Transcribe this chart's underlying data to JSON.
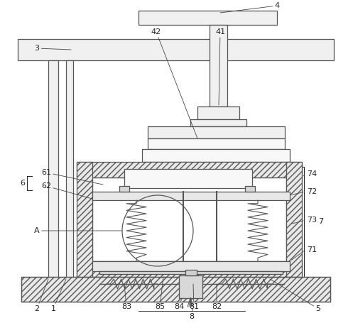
{
  "bg_color": "#ffffff",
  "line_color": "#555555",
  "title": "",
  "fig_w": 4.97,
  "fig_h": 4.55,
  "dpi": 100
}
